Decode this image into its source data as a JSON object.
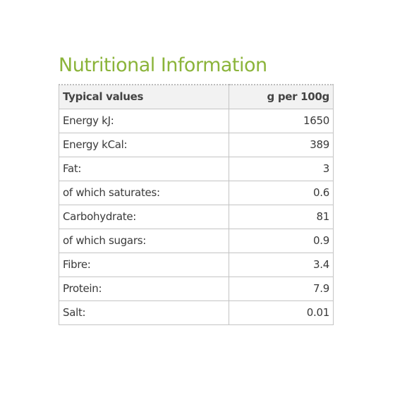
{
  "title": "Nutritional Information",
  "table": {
    "headers": [
      "Typical values",
      "g per 100g"
    ],
    "rows": [
      {
        "label": "Energy kJ:",
        "value": "1650"
      },
      {
        "label": "Energy kCal:",
        "value": "389"
      },
      {
        "label": "Fat:",
        "value": "3"
      },
      {
        "label": "of which saturates:",
        "value": "0.6"
      },
      {
        "label": "Carbohydrate:",
        "value": "81"
      },
      {
        "label": "of which sugars:",
        "value": "0.9"
      },
      {
        "label": "Fibre:",
        "value": "3.4"
      },
      {
        "label": "Protein:",
        "value": "7.9"
      },
      {
        "label": "Salt:",
        "value": "0.01"
      }
    ]
  },
  "colors": {
    "title": "#8bb43a",
    "header_background": "#f2f2f2",
    "border": "#c4c4c4",
    "text": "#3a3a3a"
  }
}
